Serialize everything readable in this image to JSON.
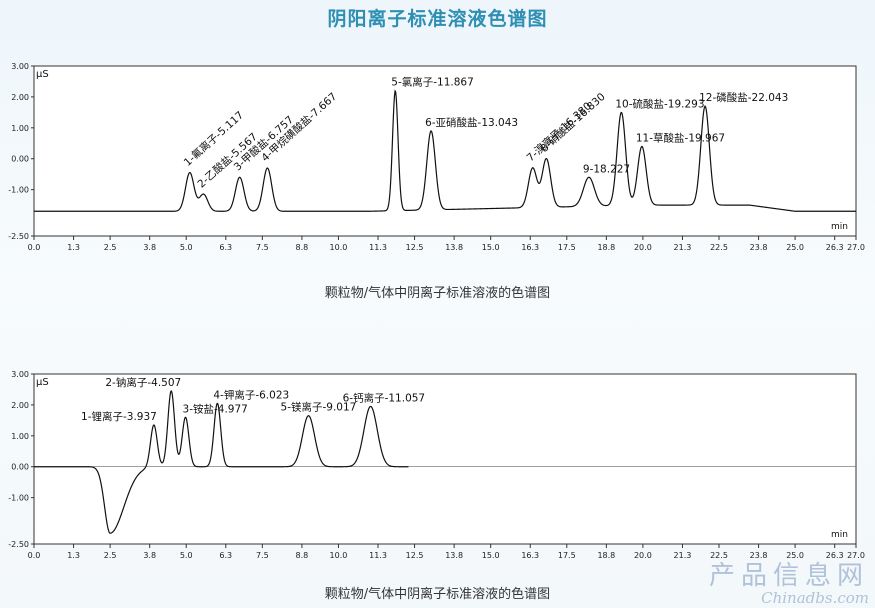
{
  "page": {
    "title": "阴阳离子标准溶液色谱图"
  },
  "watermark": {
    "cn": "产品信息网",
    "en": "Chinadbs.com"
  },
  "colors": {
    "title": "#2f8fb3",
    "line": "#111111",
    "frame": "#333333"
  },
  "chart_data": [
    {
      "type": "line",
      "caption": "颗粒物/气体中阴离子标准溶液的色谱图",
      "ylabel": "µS",
      "xlabel": "min",
      "xlim": [
        0.0,
        27.0
      ],
      "ylim": [
        -2.5,
        3.0
      ],
      "x_ticks": [
        "0.0",
        "1.3",
        "2.5",
        "3.8",
        "5.0",
        "6.3",
        "7.5",
        "8.8",
        "10.0",
        "11.3",
        "12.5",
        "13.8",
        "15.0",
        "16.3",
        "17.5",
        "18.8",
        "20.0",
        "21.3",
        "22.5",
        "23.8",
        "25.0",
        "26.3",
        "27.0"
      ],
      "y_ticks": [
        "3.00",
        "2.00",
        "1.00",
        "0.00",
        "-1.00",
        "-2.50"
      ],
      "baseline": -1.7,
      "peaks": [
        {
          "label": "1-氟离子-5.117",
          "rt": 5.117,
          "height": -0.45
        },
        {
          "label": "2-乙酸盐-5.567",
          "rt": 5.567,
          "height": -1.15
        },
        {
          "label": "3-甲酸盐-6.757",
          "rt": 6.757,
          "height": -0.6
        },
        {
          "label": "4-甲烷磺酸盐-7.667",
          "rt": 7.667,
          "height": -0.3
        },
        {
          "label": "5-氯离子-11.867",
          "rt": 11.867,
          "height": 2.2
        },
        {
          "label": "6-亚硝酸盐-13.043",
          "rt": 13.043,
          "height": 0.9
        },
        {
          "label": "7-溴离子-16.380",
          "rt": 16.38,
          "height": -0.3
        },
        {
          "label": "8-硝酸盐-16.830",
          "rt": 16.83,
          "height": 0.0
        },
        {
          "label": "9-18.227",
          "rt": 18.227,
          "height": -0.6
        },
        {
          "label": "10-硫酸盐-19.293",
          "rt": 19.293,
          "height": 1.5
        },
        {
          "label": "11-草酸盐-19.967",
          "rt": 19.967,
          "height": 0.4
        },
        {
          "label": "12-磷酸盐-22.043",
          "rt": 22.043,
          "height": 1.7
        }
      ]
    },
    {
      "type": "line",
      "caption": "颗粒物/气体中阴离子标准溶液的色谱图",
      "ylabel": "µS",
      "xlabel": "min",
      "xlim": [
        0.0,
        27.0
      ],
      "ylim": [
        -2.5,
        3.0
      ],
      "x_ticks": [
        "0.0",
        "1.3",
        "2.5",
        "3.8",
        "5.0",
        "6.3",
        "7.5",
        "8.8",
        "10.0",
        "11.3",
        "12.5",
        "13.8",
        "15.0",
        "16.3",
        "17.5",
        "18.8",
        "20.0",
        "21.3",
        "22.5",
        "23.8",
        "25.0",
        "26.3",
        "27.0"
      ],
      "y_ticks": [
        "3.00",
        "2.00",
        "1.00",
        "0.00",
        "-1.00",
        "-2.50"
      ],
      "baseline": 0.0,
      "dip": {
        "rt": 2.5,
        "depth": -2.15
      },
      "peaks": [
        {
          "label": "1-锂离子-3.937",
          "rt": 3.937,
          "height": 1.35
        },
        {
          "label": "2-钠离子-4.507",
          "rt": 4.507,
          "height": 2.45
        },
        {
          "label": "3-铵盐-4.977",
          "rt": 4.977,
          "height": 1.6
        },
        {
          "label": "4-钾离子-6.023",
          "rt": 6.023,
          "height": 2.05
        },
        {
          "label": "5-镁离子-9.017",
          "rt": 9.017,
          "height": 1.65
        },
        {
          "label": "6-钙离子-11.057",
          "rt": 11.057,
          "height": 1.95
        }
      ]
    }
  ]
}
